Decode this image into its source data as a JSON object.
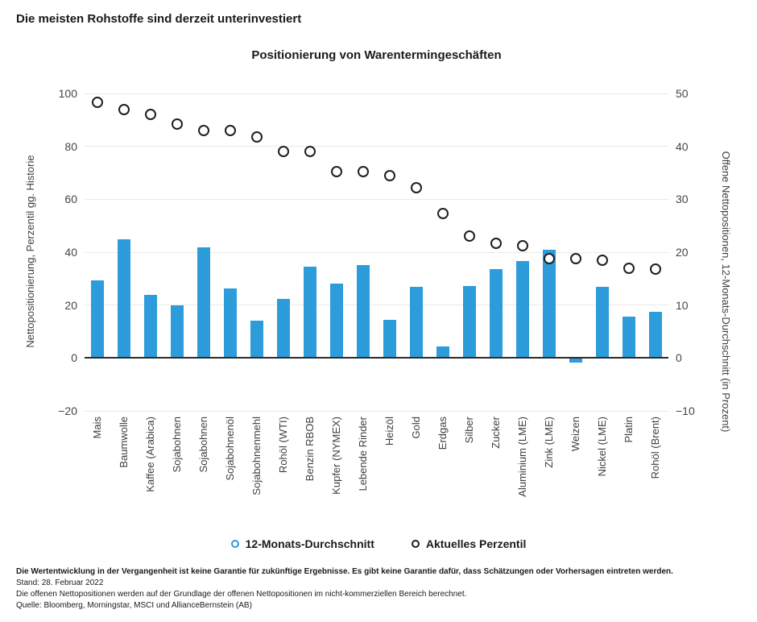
{
  "page_title": "Die meisten Rohstoffe sind derzeit unterinvestiert",
  "chart_data": {
    "type": "bar",
    "title": "Positionierung von Warentermingeschäften",
    "categories": [
      "Mais",
      "Baumwolle",
      "Kaffee (Arabica)",
      "Sojabohnen",
      "Sojabohnen",
      "Sojabohnenöl",
      "Sojabohnenmehl",
      "Rohöl (WTI)",
      "Benzin RBOB",
      "Kupfer (NYMEX)",
      "Lebende Rinder",
      "Heizöl",
      "Gold",
      "Erdgas",
      "Silber",
      "Zucker",
      "Aluminium (LME)",
      "Zink (LME)",
      "Weizen",
      "Nickel (LME)",
      "Platin",
      "Rohöl (Brent)"
    ],
    "series": [
      {
        "name": "12-Monats-Durchschnitt",
        "type": "bar",
        "axis": "right",
        "unit": "Prozent",
        "values": [
          14.7,
          22.4,
          11.9,
          9.9,
          20.9,
          13.2,
          7.0,
          11.2,
          17.3,
          14.1,
          17.5,
          7.2,
          13.5,
          2.2,
          13.6,
          16.8,
          18.4,
          20.4,
          -0.8,
          13.5,
          7.8,
          8.7
        ]
      },
      {
        "name": "Aktuelles Perzentil",
        "type": "scatter",
        "axis": "left",
        "unit": "Perzentil",
        "values": [
          96.5,
          94,
          92,
          88.5,
          86,
          86,
          83.5,
          78,
          78,
          70.5,
          70.5,
          69,
          64.5,
          54.5,
          46,
          43.5,
          42.5,
          37.5,
          37.5,
          37,
          34,
          33.5
        ]
      }
    ],
    "left_axis": {
      "label": "Nettopositionierung, Perzentil gg. Historie",
      "range": [
        -20,
        100
      ],
      "ticks": [
        100,
        80,
        60,
        40,
        20,
        0,
        -20
      ]
    },
    "right_axis": {
      "label": "Offene Nettopositionen, 12-Monats-Durchschnitt (in Prozent)",
      "range": [
        -10,
        50
      ],
      "ticks": [
        50,
        40,
        30,
        20,
        10,
        0,
        -10
      ]
    },
    "grid": true,
    "legend_position": "bottom",
    "colors": {
      "bar": "#2D9CDB",
      "marker_ring": "#1f1f1f",
      "marker_fill": "#ffffff",
      "gridline": "#e9e9e9",
      "axis_line": "#2b2b2b"
    }
  },
  "legend": {
    "items": [
      {
        "label": "12-Monats-Durchschnitt",
        "color": "#2D9CDB"
      },
      {
        "label": "Aktuelles Perzentil",
        "color": "#1f1f1f"
      }
    ]
  },
  "footer": {
    "disclaimer": "Die Wertentwicklung in der Vergangenheit ist keine Garantie für zukünftige Ergebnisse. Es gibt keine Garantie dafür, dass Schätzungen oder Vorhersagen eintreten werden.",
    "stand": "Stand: 28. Februar 2022",
    "note": "Die offenen Nettopositionen werden auf der Grundlage der offenen Nettopositionen im nicht-kommerziellen Bereich berechnet.",
    "source": "Quelle: Bloomberg, Morningstar, MSCI und AllianceBernstein (AB)"
  }
}
